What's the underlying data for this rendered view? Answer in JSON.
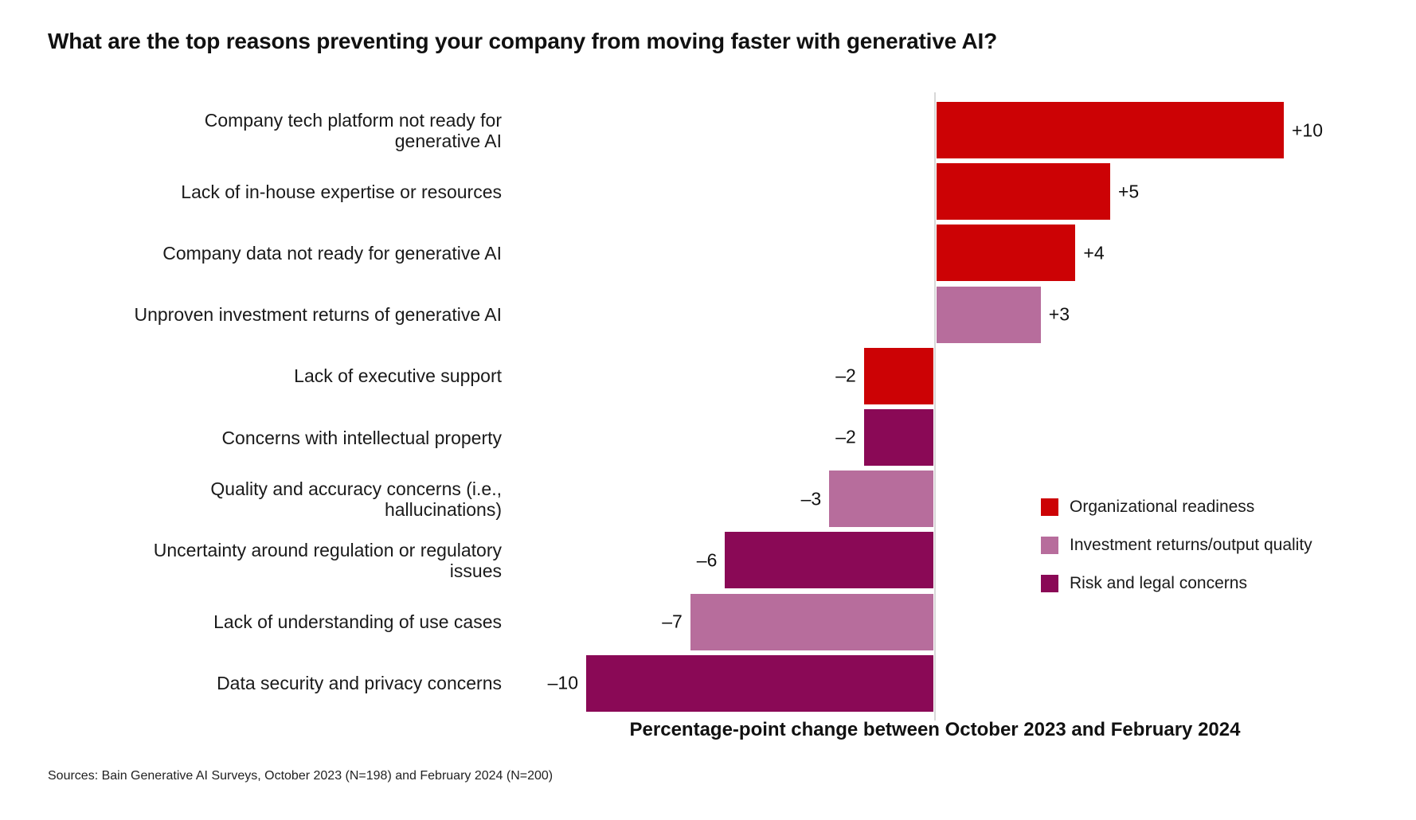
{
  "chart_data": {
    "type": "bar",
    "orientation": "horizontal",
    "title": "What are the top reasons preventing your company from moving faster with generative AI?",
    "xlabel": "Percentage-point change between October 2023 and February 2024",
    "ylabel": "",
    "x_range": [
      -10,
      10
    ],
    "grid": false,
    "legend_position": "right",
    "groups": {
      "organizational_readiness": {
        "label": "Organizational readiness",
        "color": "#cc0205"
      },
      "investment_returns": {
        "label": "Investment returns/output quality",
        "color": "#b76d9c"
      },
      "risk_legal": {
        "label": "Risk and legal concerns",
        "color": "#8a0956"
      }
    },
    "legend_order": [
      "organizational_readiness",
      "investment_returns",
      "risk_legal"
    ],
    "bars": [
      {
        "category": "Company tech platform not ready for\ngenerative AI",
        "value": 10,
        "display": "+10",
        "group": "organizational_readiness"
      },
      {
        "category": "Lack of in-house expertise or resources",
        "value": 5,
        "display": "+5",
        "group": "organizational_readiness"
      },
      {
        "category": "Company data not ready for generative AI",
        "value": 4,
        "display": "+4",
        "group": "organizational_readiness"
      },
      {
        "category": "Unproven investment returns of generative AI",
        "value": 3,
        "display": "+3",
        "group": "investment_returns"
      },
      {
        "category": "Lack of executive support",
        "value": -2,
        "display": "–2",
        "group": "organizational_readiness"
      },
      {
        "category": "Concerns with intellectual property",
        "value": -2,
        "display": "–2",
        "group": "risk_legal"
      },
      {
        "category": "Quality and accuracy concerns (i.e.,\nhallucinations)",
        "value": -3,
        "display": "–3",
        "group": "investment_returns"
      },
      {
        "category": "Uncertainty around regulation or regulatory\nissues",
        "value": -6,
        "display": "–6",
        "group": "risk_legal"
      },
      {
        "category": "Lack of understanding of use cases",
        "value": -7,
        "display": "–7",
        "group": "investment_returns"
      },
      {
        "category": "Data security and privacy concerns",
        "value": -10,
        "display": "–10",
        "group": "risk_legal"
      }
    ]
  },
  "sources": "Sources: Bain Generative AI Surveys, October 2023 (N=198) and February 2024 (N=200)"
}
